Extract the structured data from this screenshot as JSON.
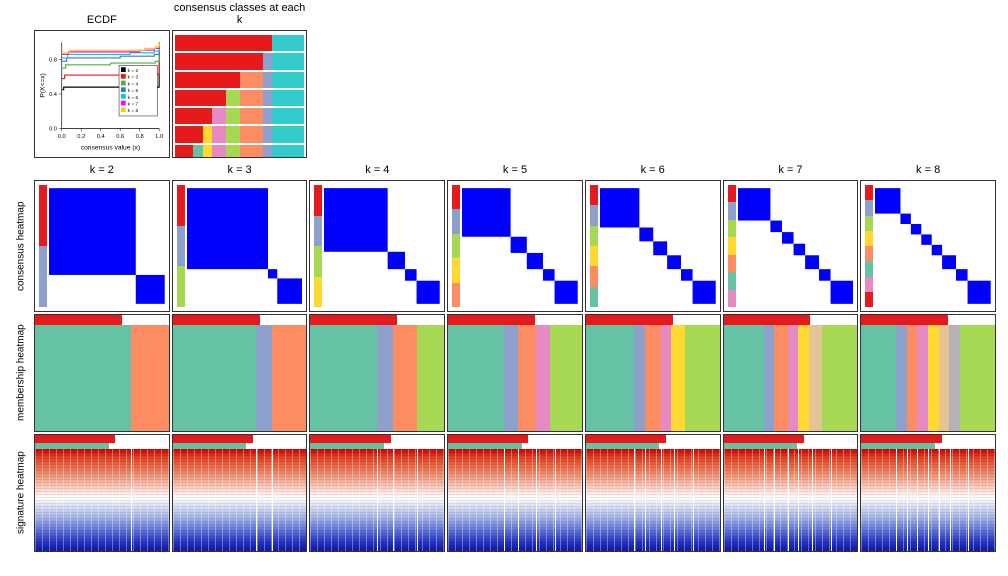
{
  "titles": {
    "ecdf": "ECDF",
    "consensus_classes": "consensus classes at each k",
    "k2": "k = 2",
    "k3": "k = 3",
    "k4": "k = 4",
    "k5": "k = 5",
    "k6": "k = 6",
    "k7": "k = 7",
    "k8": "k = 8"
  },
  "row_labels": {
    "consensus": "consensus heatmap",
    "membership": "membership heatmap",
    "signature": "signature heatmap"
  },
  "ecdf": {
    "xlabel": "consensus value (x)",
    "ylabel": "P(X<=x)",
    "xticks": [
      "0.0",
      "0.2",
      "0.4",
      "0.6",
      "0.8",
      "1.0"
    ],
    "yticks": [
      "0.0",
      "0.4",
      "0.8"
    ],
    "xlim": [
      0,
      1
    ],
    "ylim": [
      0,
      1
    ],
    "legend_items": [
      "k = 2",
      "k = 3",
      "k = 4",
      "k = 5",
      "k = 6",
      "k = 7",
      "k = 8"
    ],
    "legend_colors": [
      "#000000",
      "#e41a1c",
      "#4daf4a",
      "#377eb8",
      "#00ced1",
      "#ff00ff",
      "#ffcc00"
    ],
    "curves": [
      {
        "color": "#000000",
        "pts": [
          [
            0,
            0.45
          ],
          [
            0.02,
            0.48
          ],
          [
            0.98,
            0.48
          ],
          [
            1,
            1
          ]
        ]
      },
      {
        "color": "#e41a1c",
        "pts": [
          [
            0,
            0.58
          ],
          [
            0.03,
            0.62
          ],
          [
            0.97,
            0.63
          ],
          [
            1,
            1
          ]
        ]
      },
      {
        "color": "#4daf4a",
        "pts": [
          [
            0,
            0.7
          ],
          [
            0.04,
            0.74
          ],
          [
            0.5,
            0.76
          ],
          [
            0.96,
            0.78
          ],
          [
            1,
            1
          ]
        ]
      },
      {
        "color": "#377eb8",
        "pts": [
          [
            0,
            0.78
          ],
          [
            0.05,
            0.82
          ],
          [
            0.6,
            0.84
          ],
          [
            0.95,
            0.86
          ],
          [
            1,
            1
          ]
        ]
      },
      {
        "color": "#00ced1",
        "pts": [
          [
            0,
            0.82
          ],
          [
            0.06,
            0.86
          ],
          [
            0.7,
            0.88
          ],
          [
            0.95,
            0.9
          ],
          [
            1,
            1
          ]
        ]
      },
      {
        "color": "#ff00ff",
        "pts": [
          [
            0,
            0.86
          ],
          [
            0.07,
            0.89
          ],
          [
            0.8,
            0.91
          ],
          [
            0.95,
            0.93
          ],
          [
            1,
            1
          ]
        ]
      },
      {
        "color": "#ffcc00",
        "pts": [
          [
            0,
            0.88
          ],
          [
            0.08,
            0.91
          ],
          [
            0.85,
            0.93
          ],
          [
            0.96,
            0.95
          ],
          [
            1,
            1
          ]
        ]
      }
    ]
  },
  "class_colors": [
    "#e41a1c",
    "#33cccc",
    "#8da0cb",
    "#fc8d62",
    "#a6d854",
    "#e78ac3",
    "#ffd92f",
    "#66c2a5"
  ],
  "consensus_classes": {
    "n_samples": 28,
    "tracks": [
      [
        0,
        0,
        0,
        0,
        0,
        0,
        0,
        0,
        0,
        0,
        0,
        0,
        0,
        0,
        0,
        0,
        0,
        0,
        0,
        0,
        0,
        1,
        1,
        1,
        1,
        1,
        1,
        1
      ],
      [
        0,
        0,
        0,
        0,
        0,
        0,
        0,
        0,
        0,
        0,
        0,
        0,
        0,
        0,
        0,
        0,
        0,
        0,
        0,
        2,
        2,
        1,
        1,
        1,
        1,
        1,
        1,
        1
      ],
      [
        0,
        0,
        0,
        0,
        0,
        0,
        0,
        0,
        0,
        0,
        0,
        0,
        0,
        0,
        3,
        3,
        3,
        3,
        3,
        2,
        2,
        1,
        1,
        1,
        1,
        1,
        1,
        1
      ],
      [
        0,
        0,
        0,
        0,
        0,
        0,
        0,
        0,
        0,
        0,
        0,
        4,
        4,
        4,
        3,
        3,
        3,
        3,
        3,
        2,
        2,
        1,
        1,
        1,
        1,
        1,
        1,
        1
      ],
      [
        0,
        0,
        0,
        0,
        0,
        0,
        0,
        0,
        5,
        5,
        5,
        4,
        4,
        4,
        3,
        3,
        3,
        3,
        3,
        2,
        2,
        1,
        1,
        1,
        1,
        1,
        1,
        1
      ],
      [
        0,
        0,
        0,
        0,
        0,
        0,
        6,
        6,
        5,
        5,
        5,
        4,
        4,
        4,
        3,
        3,
        3,
        3,
        3,
        2,
        2,
        1,
        1,
        1,
        1,
        1,
        1,
        1
      ],
      [
        0,
        0,
        0,
        0,
        7,
        7,
        6,
        6,
        5,
        5,
        5,
        4,
        4,
        4,
        3,
        3,
        3,
        3,
        3,
        2,
        2,
        1,
        1,
        1,
        1,
        1,
        1,
        1
      ]
    ]
  },
  "consensus_heatmaps": {
    "block_color": "#0000ff",
    "faint_color": "#e0e0ff",
    "bg": "#ffffff",
    "ks": {
      "2": {
        "blocks": [
          {
            "x": 0,
            "w": 0.75
          },
          {
            "x": 0.75,
            "w": 0.25
          }
        ]
      },
      "3": {
        "blocks": [
          {
            "x": 0,
            "w": 0.7
          },
          {
            "x": 0.7,
            "w": 0.08
          },
          {
            "x": 0.78,
            "w": 0.22
          }
        ]
      },
      "4": {
        "blocks": [
          {
            "x": 0,
            "w": 0.55
          },
          {
            "x": 0.55,
            "w": 0.15
          },
          {
            "x": 0.7,
            "w": 0.1
          },
          {
            "x": 0.8,
            "w": 0.2
          }
        ]
      },
      "5": {
        "blocks": [
          {
            "x": 0,
            "w": 0.42
          },
          {
            "x": 0.42,
            "w": 0.14
          },
          {
            "x": 0.56,
            "w": 0.14
          },
          {
            "x": 0.7,
            "w": 0.1
          },
          {
            "x": 0.8,
            "w": 0.2
          }
        ]
      },
      "6": {
        "blocks": [
          {
            "x": 0,
            "w": 0.34
          },
          {
            "x": 0.34,
            "w": 0.12
          },
          {
            "x": 0.46,
            "w": 0.12
          },
          {
            "x": 0.58,
            "w": 0.12
          },
          {
            "x": 0.7,
            "w": 0.1
          },
          {
            "x": 0.8,
            "w": 0.2
          }
        ]
      },
      "7": {
        "blocks": [
          {
            "x": 0,
            "w": 0.28
          },
          {
            "x": 0.28,
            "w": 0.1
          },
          {
            "x": 0.38,
            "w": 0.1
          },
          {
            "x": 0.48,
            "w": 0.1
          },
          {
            "x": 0.58,
            "w": 0.12
          },
          {
            "x": 0.7,
            "w": 0.1
          },
          {
            "x": 0.8,
            "w": 0.2
          }
        ]
      },
      "8": {
        "blocks": [
          {
            "x": 0,
            "w": 0.22
          },
          {
            "x": 0.22,
            "w": 0.09
          },
          {
            "x": 0.31,
            "w": 0.09
          },
          {
            "x": 0.4,
            "w": 0.09
          },
          {
            "x": 0.49,
            "w": 0.09
          },
          {
            "x": 0.58,
            "w": 0.12
          },
          {
            "x": 0.7,
            "w": 0.1
          },
          {
            "x": 0.8,
            "w": 0.2
          }
        ]
      }
    },
    "side_colors": [
      "#e41a1c",
      "#8da0cb",
      "#a6d854",
      "#ffd92f",
      "#fc8d62",
      "#66c2a5",
      "#e78ac3"
    ]
  },
  "membership": {
    "top_color": "#e41a1c",
    "colors": [
      "#66c2a5",
      "#fc8d62",
      "#8da0cb",
      "#e78ac3",
      "#a6d854",
      "#ffd92f",
      "#e5c494",
      "#b3b3b3"
    ],
    "ks": {
      "2": [
        {
          "c": 0,
          "w": 0.72
        },
        {
          "c": 1,
          "w": 0.28
        }
      ],
      "3": [
        {
          "c": 0,
          "w": 0.62
        },
        {
          "c": 2,
          "w": 0.12
        },
        {
          "c": 1,
          "w": 0.26
        }
      ],
      "4": [
        {
          "c": 0,
          "w": 0.5
        },
        {
          "c": 2,
          "w": 0.12
        },
        {
          "c": 1,
          "w": 0.18
        },
        {
          "c": 4,
          "w": 0.2
        }
      ],
      "5": [
        {
          "c": 0,
          "w": 0.42
        },
        {
          "c": 2,
          "w": 0.1
        },
        {
          "c": 1,
          "w": 0.14
        },
        {
          "c": 3,
          "w": 0.1
        },
        {
          "c": 4,
          "w": 0.24
        }
      ],
      "6": [
        {
          "c": 0,
          "w": 0.36
        },
        {
          "c": 2,
          "w": 0.08
        },
        {
          "c": 1,
          "w": 0.12
        },
        {
          "c": 3,
          "w": 0.08
        },
        {
          "c": 5,
          "w": 0.1
        },
        {
          "c": 4,
          "w": 0.26
        }
      ],
      "7": [
        {
          "c": 0,
          "w": 0.3
        },
        {
          "c": 2,
          "w": 0.08
        },
        {
          "c": 1,
          "w": 0.1
        },
        {
          "c": 3,
          "w": 0.08
        },
        {
          "c": 5,
          "w": 0.08
        },
        {
          "c": 6,
          "w": 0.1
        },
        {
          "c": 4,
          "w": 0.26
        }
      ],
      "8": [
        {
          "c": 0,
          "w": 0.26
        },
        {
          "c": 2,
          "w": 0.08
        },
        {
          "c": 1,
          "w": 0.08
        },
        {
          "c": 3,
          "w": 0.08
        },
        {
          "c": 5,
          "w": 0.08
        },
        {
          "c": 6,
          "w": 0.08
        },
        {
          "c": 7,
          "w": 0.08
        },
        {
          "c": 4,
          "w": 0.26
        }
      ]
    }
  },
  "signature": {
    "top_colors": [
      "#e41a1c",
      "#ffffff"
    ],
    "bar2_color": "#66c2a5",
    "splits": {
      "2": [
        0.72
      ],
      "3": [
        0.62,
        0.74
      ],
      "4": [
        0.5,
        0.62,
        0.8
      ],
      "5": [
        0.42,
        0.52,
        0.66,
        0.8
      ],
      "6": [
        0.36,
        0.44,
        0.56,
        0.66,
        0.8
      ],
      "7": [
        0.3,
        0.38,
        0.48,
        0.56,
        0.66,
        0.8
      ],
      "8": [
        0.26,
        0.34,
        0.42,
        0.5,
        0.58,
        0.66,
        0.8
      ]
    }
  }
}
